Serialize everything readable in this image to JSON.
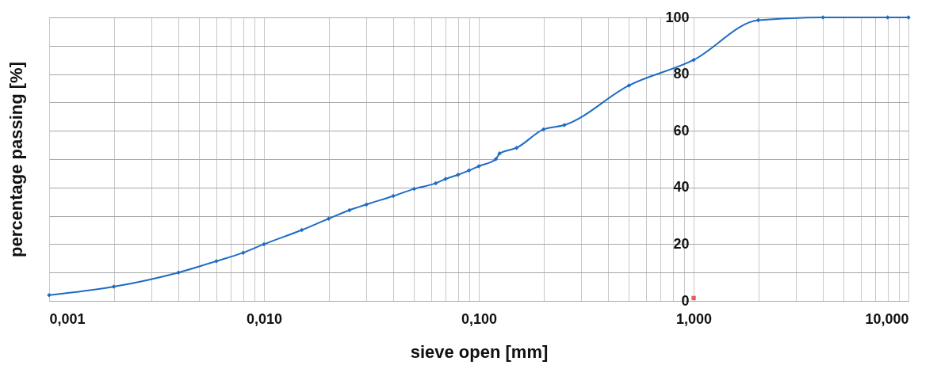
{
  "chart_data": {
    "type": "line",
    "xlabel": "sieve open [mm]",
    "ylabel": "percentage passing [%]",
    "log": "x",
    "grid": true,
    "marker": "diamond",
    "line_style": "solid",
    "xlim": [
      0.001,
      10
    ],
    "ylim": [
      0,
      100
    ],
    "xticks": [
      {
        "value": 0.001,
        "label": "0,001"
      },
      {
        "value": 0.002,
        "label": null
      },
      {
        "value": 0.003,
        "label": null
      },
      {
        "value": 0.004,
        "label": null
      },
      {
        "value": 0.005,
        "label": null
      },
      {
        "value": 0.006,
        "label": null
      },
      {
        "value": 0.007,
        "label": null
      },
      {
        "value": 0.008,
        "label": null
      },
      {
        "value": 0.009,
        "label": null
      },
      {
        "value": 0.01,
        "label": "0,010"
      },
      {
        "value": 0.02,
        "label": null
      },
      {
        "value": 0.03,
        "label": null
      },
      {
        "value": 0.04,
        "label": null
      },
      {
        "value": 0.05,
        "label": null
      },
      {
        "value": 0.06,
        "label": null
      },
      {
        "value": 0.07,
        "label": null
      },
      {
        "value": 0.08,
        "label": null
      },
      {
        "value": 0.09,
        "label": null
      },
      {
        "value": 0.1,
        "label": "0,100"
      },
      {
        "value": 0.2,
        "label": null
      },
      {
        "value": 0.3,
        "label": null
      },
      {
        "value": 0.4,
        "label": null
      },
      {
        "value": 0.5,
        "label": null
      },
      {
        "value": 0.6,
        "label": null
      },
      {
        "value": 0.7,
        "label": null
      },
      {
        "value": 0.8,
        "label": null
      },
      {
        "value": 0.9,
        "label": null
      },
      {
        "value": 1,
        "label": "1,000"
      },
      {
        "value": 2,
        "label": null
      },
      {
        "value": 3,
        "label": null
      },
      {
        "value": 4,
        "label": null
      },
      {
        "value": 5,
        "label": null
      },
      {
        "value": 6,
        "label": null
      },
      {
        "value": 7,
        "label": null
      },
      {
        "value": 8,
        "label": null
      },
      {
        "value": 9,
        "label": null
      },
      {
        "value": 10,
        "label": "10,000"
      }
    ],
    "yticks": [
      0,
      {
        "value": 10,
        "label": null
      },
      20,
      {
        "value": 30,
        "label": null
      },
      40,
      {
        "value": 50,
        "label": null
      },
      60,
      {
        "value": 70,
        "label": null
      },
      80,
      {
        "value": 90,
        "label": null
      },
      100
    ],
    "series": [
      {
        "color": "#1f6cc4",
        "x": [
          0.001,
          0.002,
          0.004,
          0.006,
          0.008,
          0.01,
          0.015,
          0.02,
          0.025,
          0.03,
          0.04,
          0.05,
          0.063,
          0.07,
          0.08,
          0.09,
          0.1,
          0.12,
          0.125,
          0.15,
          0.2,
          0.25,
          0.5,
          1,
          2,
          4,
          8,
          10
        ],
        "values": [
          2,
          5,
          10,
          14,
          17,
          20,
          25,
          29,
          32,
          34,
          37,
          39.5,
          41.5,
          43,
          44.5,
          46,
          47.5,
          50,
          52,
          54,
          60.5,
          62,
          76,
          85,
          99,
          100,
          100,
          100
        ]
      },
      {
        "type": "scatter",
        "marker": "square",
        "color": "#e02020",
        "x": [
          1
        ],
        "values": [
          1
        ]
      }
    ]
  }
}
